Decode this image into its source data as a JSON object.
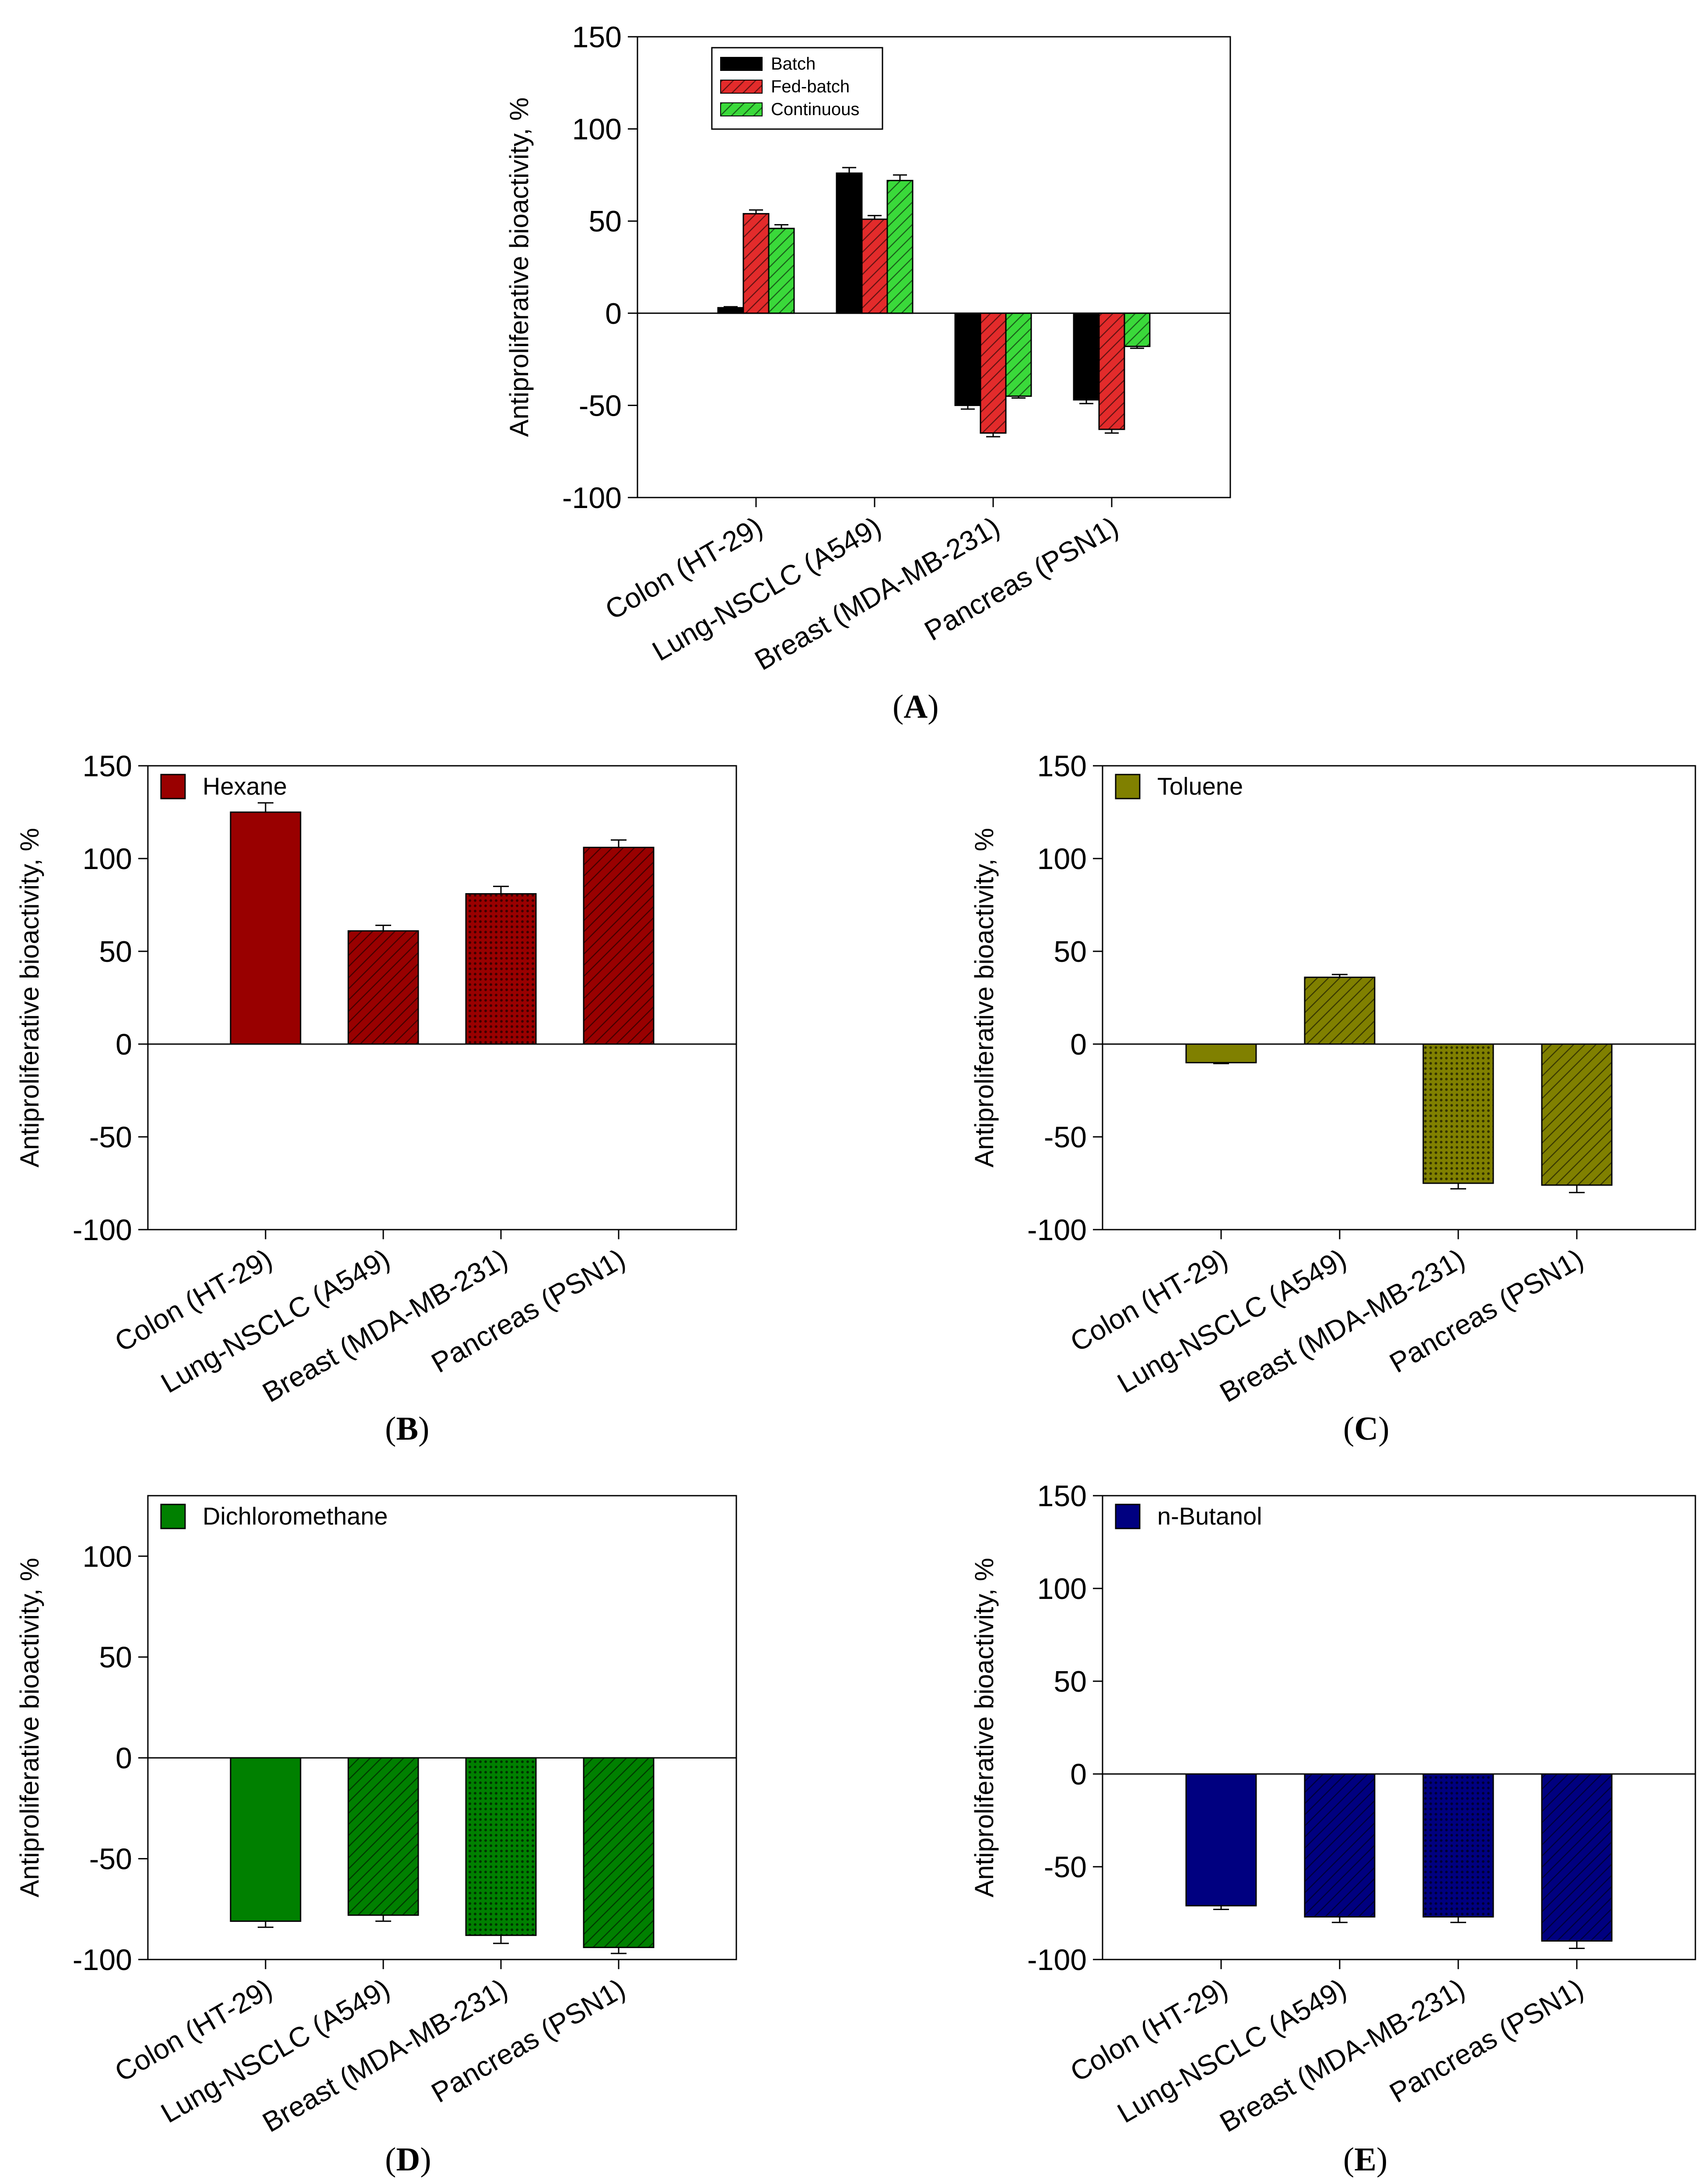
{
  "figure": {
    "charts": [
      {
        "id": "A",
        "panel_label": "(A)",
        "panel_letter": "A",
        "type": "bar",
        "categories": [
          "Colon (HT-29)",
          "Lung-NSCLC (A549)",
          "Breast (MDA-MB-231)",
          "Pancreas (PSN1)"
        ],
        "ylabel": "Antiproliferative bioactivity, %",
        "ylim": [
          -100,
          150
        ],
        "yticks": [
          -100,
          -50,
          0,
          50,
          100,
          150
        ],
        "zero_line": true,
        "legend_position": "top-left",
        "series": [
          {
            "name": "Batch",
            "color": "#000000",
            "pattern": "solid",
            "values": [
              3,
              76,
              -50,
              -47
            ],
            "errors": [
              0.5,
              3,
              2,
              2
            ]
          },
          {
            "name": "Fed-batch",
            "color": "#e32b2b",
            "pattern": "hatch",
            "values": [
              54,
              51,
              -65,
              -63
            ],
            "errors": [
              2,
              2,
              2,
              2
            ]
          },
          {
            "name": "Continuous",
            "color": "#3ad93a",
            "pattern": "hatch",
            "values": [
              46,
              72,
              -45,
              -18
            ],
            "errors": [
              2,
              3,
              1,
              1
            ]
          }
        ]
      },
      {
        "id": "B",
        "panel_label": "(B)",
        "panel_letter": "B",
        "type": "bar",
        "categories": [
          "Colon (HT-29)",
          "Lung-NSCLC (A549)",
          "Breast (MDA-MB-231)",
          "Pancreas (PSN1)"
        ],
        "ylabel": "Antiproliferative bioactivity, %",
        "ylim": [
          -100,
          150
        ],
        "yticks": [
          -100,
          -50,
          0,
          50,
          100,
          150
        ],
        "zero_line": true,
        "legend_position": "top-left",
        "legend": "Hexane",
        "color": "#990000",
        "patterns": [
          "solid",
          "hatch",
          "grid",
          "hatch"
        ],
        "values": [
          125,
          61,
          81,
          106
        ],
        "errors": [
          5,
          3,
          4,
          4
        ]
      },
      {
        "id": "C",
        "panel_label": "(C)",
        "panel_letter": "C",
        "type": "bar",
        "categories": [
          "Colon (HT-29)",
          "Lung-NSCLC (A549)",
          "Breast (MDA-MB-231)",
          "Pancreas (PSN1)"
        ],
        "ylabel": "Antiproliferative bioactivity, %",
        "ylim": [
          -100,
          150
        ],
        "yticks": [
          -100,
          -50,
          0,
          50,
          100,
          150
        ],
        "zero_line": true,
        "legend_position": "top-left",
        "legend": "Toluene",
        "color": "#808000",
        "patterns": [
          "solid",
          "hatch",
          "grid",
          "hatch"
        ],
        "values": [
          -10,
          36,
          -75,
          -76
        ],
        "errors": [
          0.5,
          1.5,
          3,
          4
        ]
      },
      {
        "id": "D",
        "panel_label": "(D)",
        "panel_letter": "D",
        "type": "bar",
        "categories": [
          "Colon (HT-29)",
          "Lung-NSCLC (A549)",
          "Breast (MDA-MB-231)",
          "Pancreas (PSN1)"
        ],
        "ylabel": "Antiproliferative bioactivity, %",
        "ylim": [
          -100,
          130
        ],
        "yticks": [
          -100,
          -50,
          0,
          50,
          100
        ],
        "zero_line": true,
        "legend_position": "top-left",
        "legend": "Dichloromethane",
        "color": "#008000",
        "patterns": [
          "solid",
          "hatch",
          "grid",
          "hatch"
        ],
        "values": [
          -81,
          -78,
          -88,
          -94
        ],
        "errors": [
          3,
          3,
          4,
          3
        ]
      },
      {
        "id": "E",
        "panel_label": "(E)",
        "panel_letter": "E",
        "type": "bar",
        "categories": [
          "Colon (HT-29)",
          "Lung-NSCLC (A549)",
          "Breast (MDA-MB-231)",
          "Pancreas (PSN1)"
        ],
        "ylabel": "Antiproliferative bioactivity, %",
        "ylim": [
          -100,
          150
        ],
        "yticks": [
          -100,
          -50,
          0,
          50,
          100,
          150
        ],
        "zero_line": true,
        "legend_position": "top-left",
        "legend": "n-Butanol",
        "color": "#000080",
        "patterns": [
          "solid",
          "hatch",
          "grid",
          "hatch"
        ],
        "values": [
          -71,
          -77,
          -77,
          -90
        ],
        "errors": [
          2,
          3,
          3,
          4
        ]
      }
    ]
  },
  "chart_data": [
    {
      "id": "A",
      "type": "bar",
      "title": "",
      "xlabel": "",
      "ylabel": "Antiproliferative bioactivity, %",
      "ylim": [
        -100,
        150
      ],
      "categories": [
        "Colon (HT-29)",
        "Lung-NSCLC (A549)",
        "Breast (MDA-MB-231)",
        "Pancreas (PSN1)"
      ],
      "series": [
        {
          "name": "Batch",
          "values": [
            3,
            76,
            -50,
            -47
          ]
        },
        {
          "name": "Fed-batch",
          "values": [
            54,
            51,
            -65,
            -63
          ]
        },
        {
          "name": "Continuous",
          "values": [
            46,
            72,
            -45,
            -18
          ]
        }
      ]
    },
    {
      "id": "B",
      "type": "bar",
      "title": "",
      "ylabel": "Antiproliferative bioactivity, %",
      "ylim": [
        -100,
        150
      ],
      "categories": [
        "Colon (HT-29)",
        "Lung-NSCLC (A549)",
        "Breast (MDA-MB-231)",
        "Pancreas (PSN1)"
      ],
      "series": [
        {
          "name": "Hexane",
          "values": [
            125,
            61,
            81,
            106
          ]
        }
      ]
    },
    {
      "id": "C",
      "type": "bar",
      "title": "",
      "ylabel": "Antiproliferative bioactivity, %",
      "ylim": [
        -100,
        150
      ],
      "categories": [
        "Colon (HT-29)",
        "Lung-NSCLC (A549)",
        "Breast (MDA-MB-231)",
        "Pancreas (PSN1)"
      ],
      "series": [
        {
          "name": "Toluene",
          "values": [
            -10,
            36,
            -75,
            -76
          ]
        }
      ]
    },
    {
      "id": "D",
      "type": "bar",
      "title": "",
      "ylabel": "Antiproliferative bioactivity, %",
      "ylim": [
        -100,
        130
      ],
      "categories": [
        "Colon (HT-29)",
        "Lung-NSCLC (A549)",
        "Breast (MDA-MB-231)",
        "Pancreas (PSN1)"
      ],
      "series": [
        {
          "name": "Dichloromethane",
          "values": [
            -81,
            -78,
            -88,
            -94
          ]
        }
      ]
    },
    {
      "id": "E",
      "type": "bar",
      "title": "",
      "ylabel": "Antiproliferative bioactivity, %",
      "ylim": [
        -100,
        150
      ],
      "categories": [
        "Colon (HT-29)",
        "Lung-NSCLC (A549)",
        "Breast (MDA-MB-231)",
        "Pancreas (PSN1)"
      ],
      "series": [
        {
          "name": "n-Butanol",
          "values": [
            -71,
            -77,
            -77,
            -90
          ]
        }
      ]
    }
  ]
}
